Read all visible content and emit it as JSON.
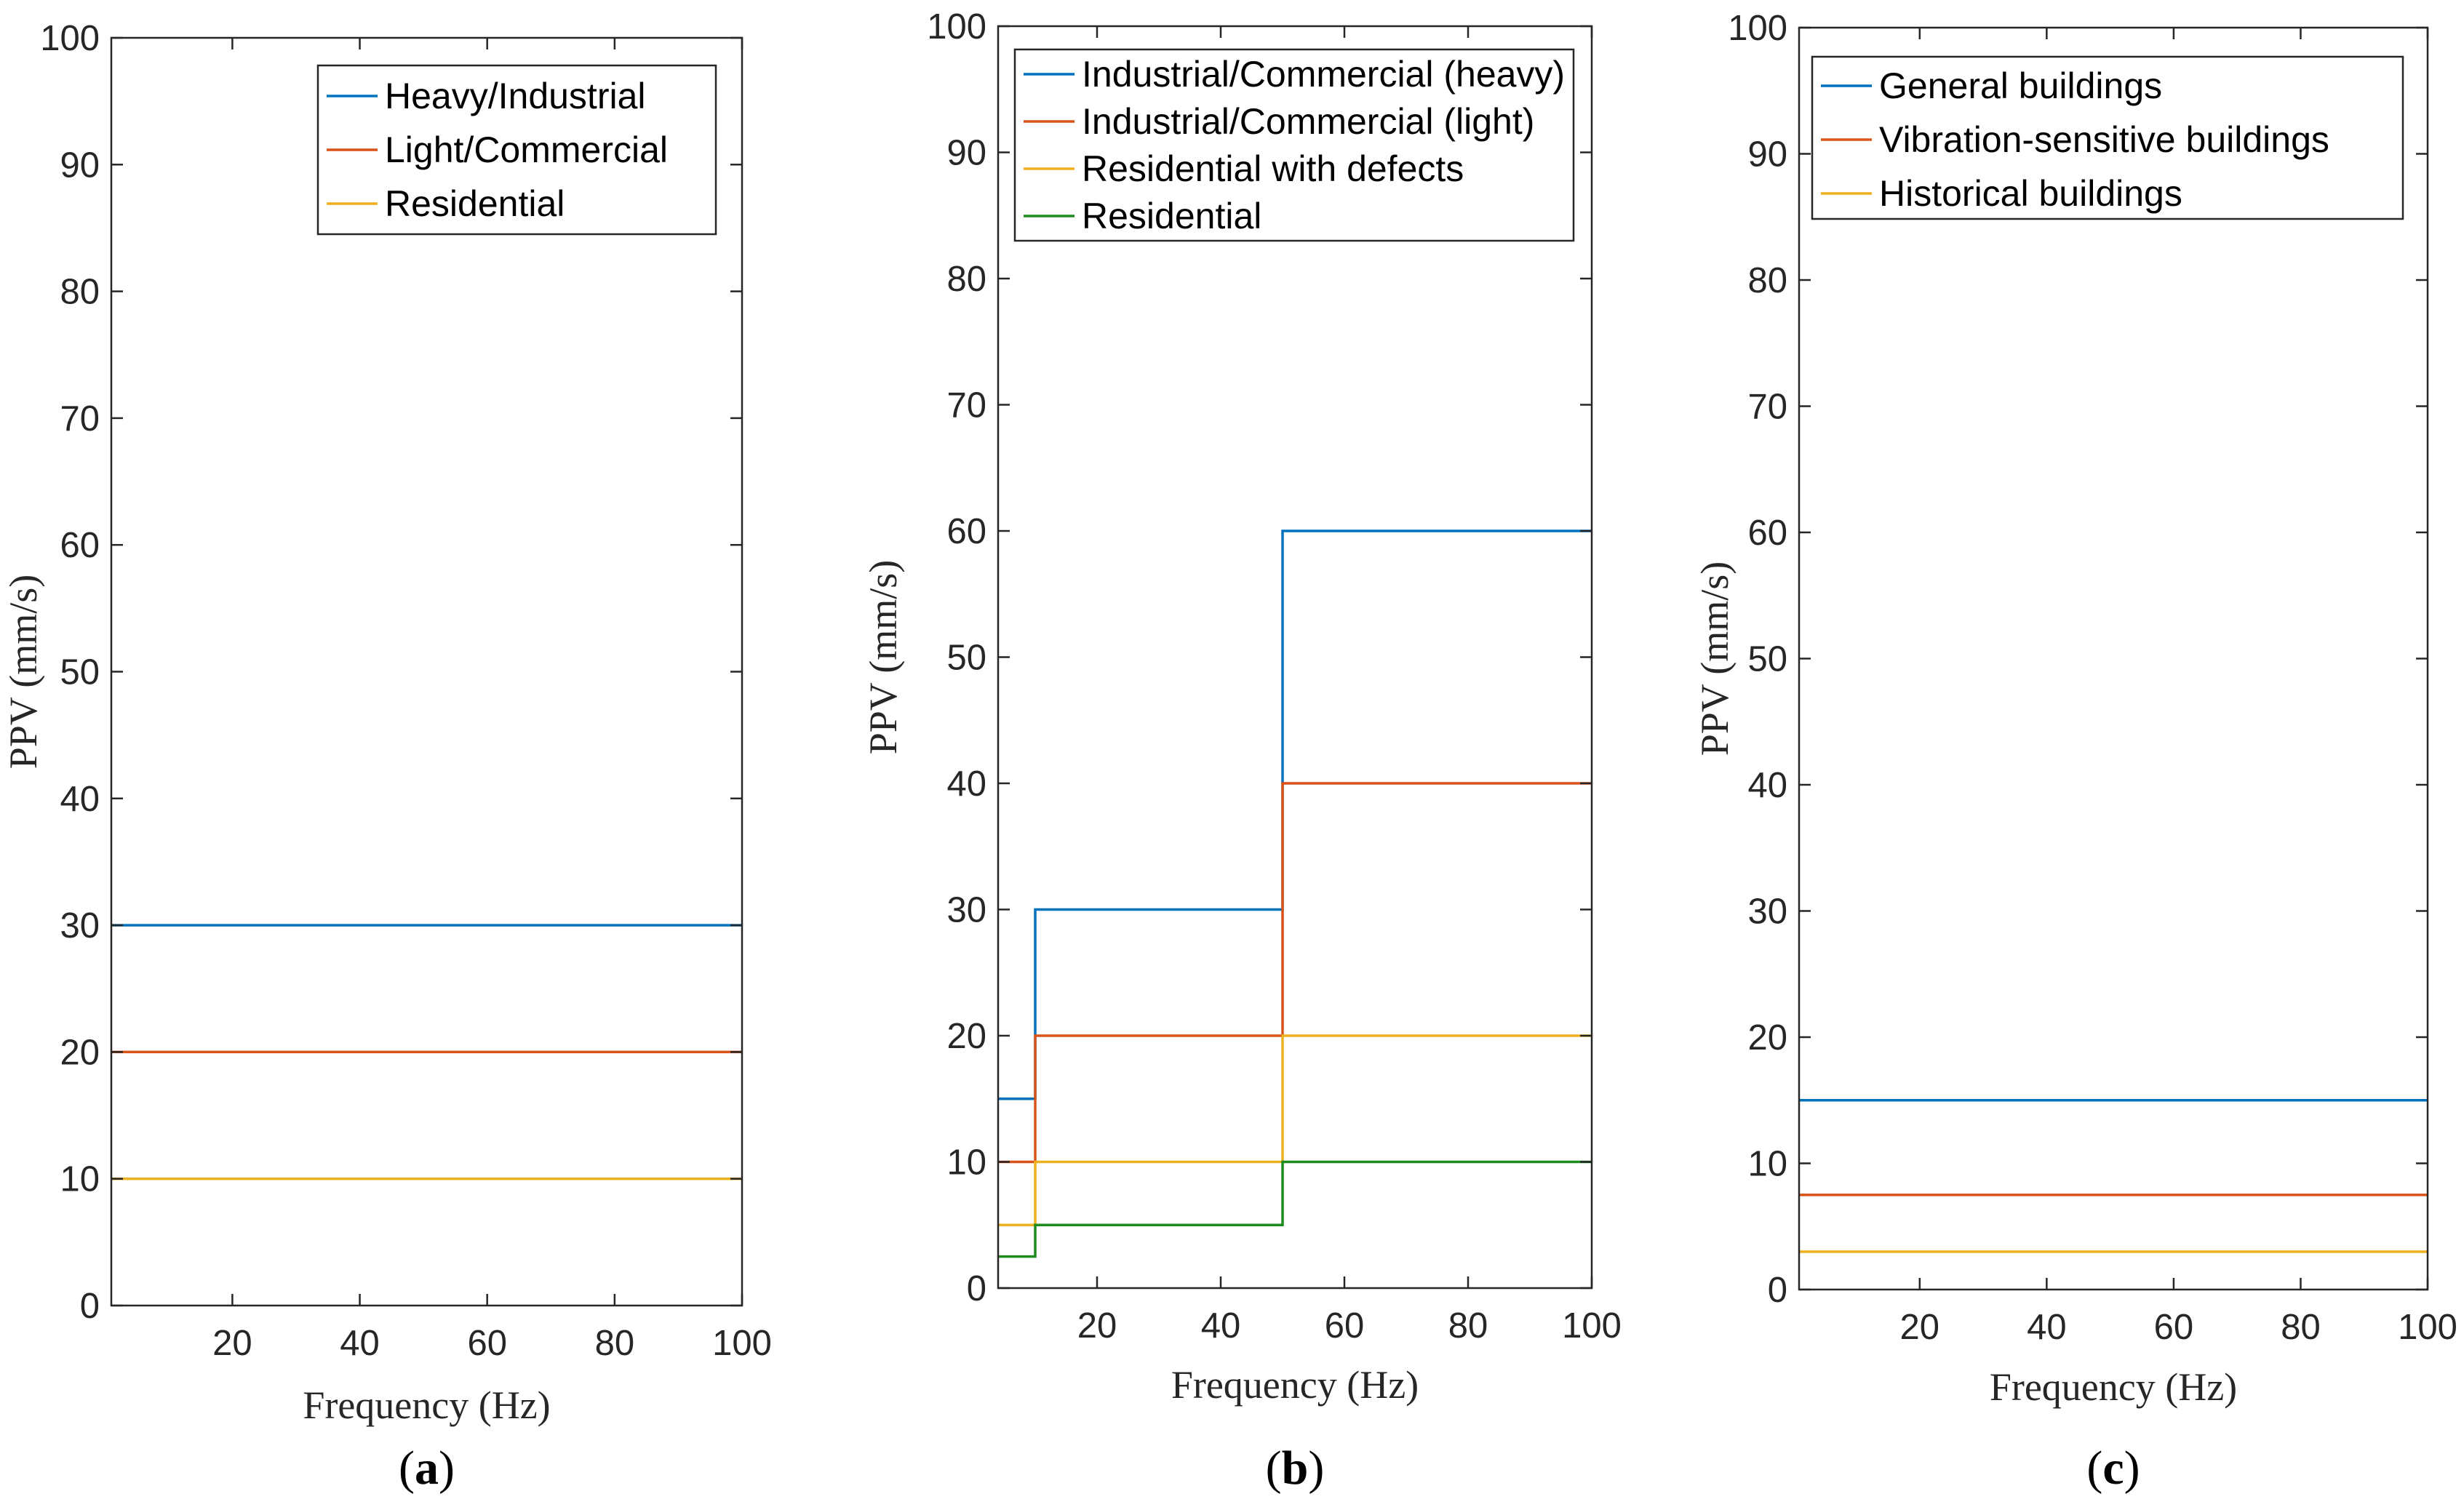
{
  "chart_data": [
    {
      "type": "line",
      "caption": "(a)",
      "caption_letter": "a",
      "xlabel": "Frequency (Hz)",
      "ylabel": "PPV (mm/s)",
      "xlim": [
        1,
        100
      ],
      "ylim": [
        0,
        100
      ],
      "xticks": [
        20,
        40,
        60,
        80,
        100
      ],
      "yticks": [
        0,
        10,
        20,
        30,
        40,
        50,
        60,
        70,
        80,
        90,
        100
      ],
      "legend_position": "top-right",
      "series": [
        {
          "name": "Heavy/Industrial",
          "color": "#0072BD",
          "x": [
            1,
            100
          ],
          "y": [
            30,
            30
          ]
        },
        {
          "name": "Light/Commercial",
          "color": "#D95319",
          "x": [
            1,
            100
          ],
          "y": [
            20,
            20
          ]
        },
        {
          "name": "Residential",
          "color": "#EDB120",
          "x": [
            1,
            100
          ],
          "y": [
            10,
            10
          ]
        }
      ]
    },
    {
      "type": "line",
      "caption": "(b)",
      "caption_letter": "b",
      "xlabel": "Frequency (Hz)",
      "ylabel": "PPV (mm/s)",
      "xlim": [
        4,
        100
      ],
      "ylim": [
        0,
        100
      ],
      "xticks": [
        20,
        40,
        60,
        80,
        100
      ],
      "yticks": [
        0,
        10,
        20,
        30,
        40,
        50,
        60,
        70,
        80,
        90,
        100
      ],
      "legend_position": "top-right",
      "series": [
        {
          "name": "Industrial/Commercial (heavy)",
          "color": "#0072BD",
          "x": [
            4,
            10,
            10,
            50,
            50,
            100
          ],
          "y": [
            15,
            15,
            30,
            30,
            60,
            60
          ]
        },
        {
          "name": "Industrial/Commercial (light)",
          "color": "#D95319",
          "x": [
            4,
            10,
            10,
            50,
            50,
            100
          ],
          "y": [
            10,
            10,
            20,
            20,
            40,
            40
          ]
        },
        {
          "name": "Residential with defects",
          "color": "#EDB120",
          "x": [
            4,
            10,
            10,
            50,
            50,
            100
          ],
          "y": [
            5,
            5,
            10,
            10,
            20,
            20
          ]
        },
        {
          "name": "Residential",
          "color": "#1E8C1E",
          "x": [
            4,
            10,
            10,
            50,
            50,
            100
          ],
          "y": [
            2.5,
            2.5,
            5,
            5,
            10,
            10
          ]
        }
      ]
    },
    {
      "type": "line",
      "caption": "(c)",
      "caption_letter": "c",
      "xlabel": "Frequency (Hz)",
      "ylabel": "PPV (mm/s)",
      "xlim": [
        1,
        100
      ],
      "ylim": [
        0,
        100
      ],
      "xticks": [
        20,
        40,
        60,
        80,
        100
      ],
      "yticks": [
        0,
        10,
        20,
        30,
        40,
        50,
        60,
        70,
        80,
        90,
        100
      ],
      "legend_position": "top-right",
      "series": [
        {
          "name": "General buildings",
          "color": "#0072BD",
          "x": [
            1,
            100
          ],
          "y": [
            15,
            15
          ]
        },
        {
          "name": "Vibration-sensitive buildings",
          "color": "#D95319",
          "x": [
            1,
            100
          ],
          "y": [
            7.5,
            7.5
          ]
        },
        {
          "name": "Historical buildings",
          "color": "#EDB120",
          "x": [
            1,
            100
          ],
          "y": [
            3,
            3
          ]
        }
      ]
    }
  ]
}
